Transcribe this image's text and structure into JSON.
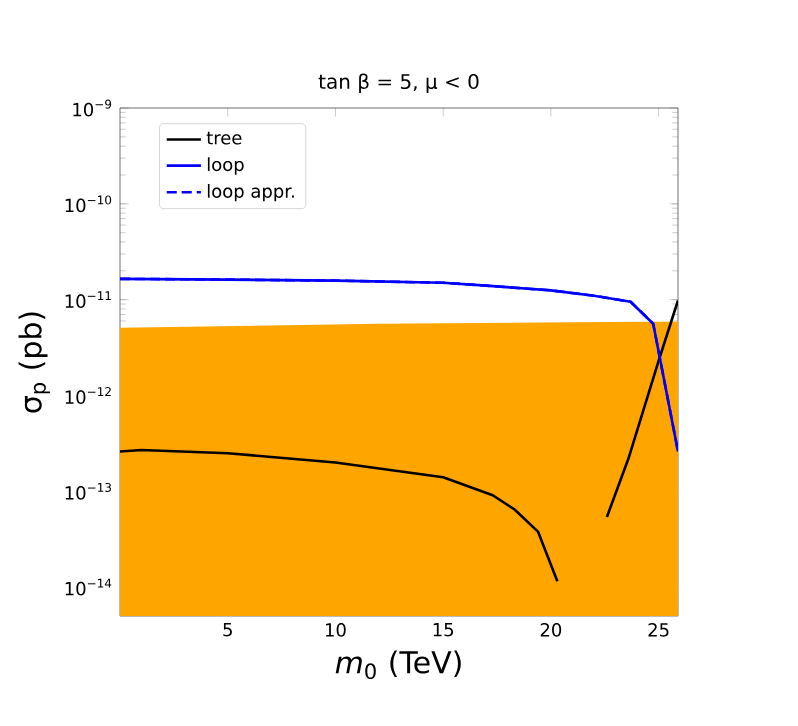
{
  "chart_data": {
    "type": "line",
    "title": "tan β = 5, μ < 0",
    "xlabel": "*m*$_{0}$  (TeV)",
    "ylabel": "σ$_{p}$  (pb)",
    "log": "y",
    "xlim": [
      0,
      25.9
    ],
    "ylim": [
      5e-15,
      1e-09
    ],
    "xticks": [
      5,
      10,
      15,
      20,
      25
    ],
    "yticks": [
      {
        "value": 1e-14,
        "label": "10$^{−14}$"
      },
      {
        "value": 1e-13,
        "label": "10$^{−13}$"
      },
      {
        "value": 1e-12,
        "label": "10$^{−12}$"
      },
      {
        "value": 1e-11,
        "label": "10$^{−11}$"
      },
      {
        "value": 1e-10,
        "label": "10$^{−10}$"
      },
      {
        "value": 1e-09,
        "label": "10$^{−9}$"
      }
    ],
    "legend": "top left",
    "grid": false,
    "series": [
      {
        "type": "area",
        "color": "#ffa500",
        "x": [
          0,
          12,
          25.9
        ],
        "values": [
          5.1e-12,
          5.6e-12,
          5.9e-12
        ]
      },
      {
        "name": "tree",
        "color": "#000000",
        "line_style": "solid",
        "x": [
          0,
          1,
          5,
          10,
          15,
          17.3,
          18.3,
          19.4,
          20.3,
          20.75,
          21.4,
          22.0,
          22.6,
          23.6,
          25,
          25.9
        ],
        "values": [
          2.6e-13,
          2.7e-13,
          2.5e-13,
          2e-13,
          1.4e-13,
          9.1e-14,
          6.5e-14,
          3.8e-14,
          1.15e-14,
          null,
          null,
          null,
          5.4e-14,
          2.2e-13,
          2.3e-12,
          9.8e-12
        ]
      },
      {
        "name": "loop",
        "color": "#0000ff",
        "line_style": "solid",
        "x": [
          0,
          5,
          10,
          15,
          17,
          20,
          22,
          23.7,
          24.75,
          25.9
        ],
        "values": [
          1.65e-11,
          1.62e-11,
          1.58e-11,
          1.5e-11,
          1.4e-11,
          1.25e-11,
          1.1e-11,
          9.5e-12,
          5.6e-12,
          2.6e-13
        ]
      },
      {
        "name": "loop appr.",
        "color": "#0000ff",
        "line_style": "dashed",
        "x": [
          0,
          5,
          10,
          15,
          17,
          20,
          22,
          23.7,
          24.75,
          25.9
        ],
        "values": [
          1.65e-11,
          1.62e-11,
          1.58e-11,
          1.5e-11,
          1.4e-11,
          1.25e-11,
          1.1e-11,
          9.5e-12,
          5.6e-12,
          2.6e-13
        ]
      }
    ]
  }
}
